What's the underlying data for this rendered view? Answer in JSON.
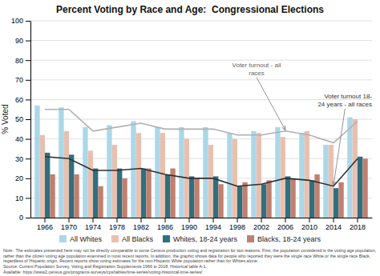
{
  "chart_data": {
    "type": "bar",
    "title": "Percent Voting by Race and Age:  Congressional Elections",
    "y_label": "% Voted",
    "categories": [
      "1966",
      "1970",
      "1974",
      "1978",
      "1982",
      "1986",
      "1990",
      "1994",
      "1998",
      "2002",
      "2006",
      "2010",
      "2014",
      "2018"
    ],
    "series": [
      {
        "name": "All Whites",
        "color": "#aad8e8",
        "values": [
          57,
          56,
          46,
          47,
          49,
          46,
          46,
          46,
          43,
          44,
          46,
          43,
          37,
          51
        ]
      },
      {
        "name": "All Blacks",
        "color": "#e8c0b0",
        "values": [
          42,
          44,
          34,
          37,
          43,
          43,
          40,
          37,
          40,
          43,
          41,
          44,
          37,
          50
        ]
      },
      {
        "name": "Whites, 18-24 years",
        "color": "#2e7080",
        "values": [
          33,
          32,
          25,
          25,
          25,
          22,
          21,
          21,
          16,
          17,
          21,
          19,
          15,
          31
        ]
      },
      {
        "name": "Blacks, 18-24 years",
        "color": "#c08070",
        "values": [
          22,
          22,
          16,
          20,
          25,
          25,
          20,
          17,
          18,
          19,
          20,
          22,
          18,
          30
        ]
      },
      {
        "type": "line",
        "color": "#b0b0b0",
        "values": [
          55,
          55,
          44,
          46,
          48,
          45,
          45,
          45,
          42,
          42,
          44,
          42,
          38,
          49
        ]
      },
      {
        "type": "line",
        "color": "#303030",
        "values": [
          31,
          30,
          24,
          24,
          25,
          22,
          20,
          20,
          16,
          17,
          20,
          19,
          16,
          30
        ]
      }
    ],
    "ylim": [
      0,
      100
    ],
    "yticks": [
      0,
      10,
      20,
      30,
      40,
      50,
      60,
      70,
      80,
      90,
      100
    ],
    "grid": true,
    "legend": "bottom",
    "annotations": [
      "Voter turnout - all\nraces",
      "Voter turnout 18-\n24 years - all races"
    ],
    "notes": [
      "Note:  The estimates presented here may not be directly comparable to some Census production voting and registration for two reasons. First, the population considered is the voting age population,",
      "rather than the citizen voting age population examined in most recent reports. In addition, the graphic shows data for people who reported they were the single race White or the single race Black,",
      "regardless of Hispanic origin. Recent reports show voting estimates for the non-Hispanic White population rather than for Whites alone.",
      "Source: Current Population Survey, Voting and Registration Supplements 1966 to 2018, Historical table A-1.",
      "Available: https://www2.census.gov/programs-surveys/cps/tables/time-series/voting-historical-time-series/"
    ]
  }
}
